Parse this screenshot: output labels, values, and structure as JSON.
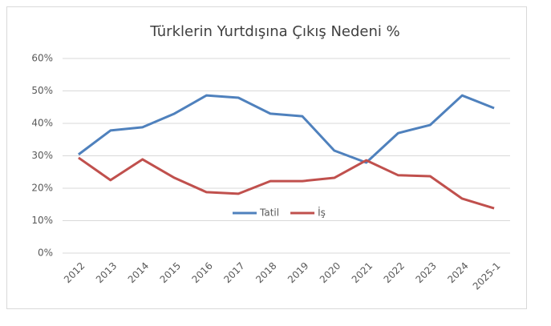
{
  "chart_data": {
    "type": "line",
    "title": "Türklerin Yurtdışına Çıkış Nedeni %",
    "categories": [
      "2012",
      "2013",
      "2014",
      "2015",
      "2016",
      "2017",
      "2018",
      "2019",
      "2020",
      "2021",
      "2022",
      "2023",
      "2024",
      "2025-1"
    ],
    "series": [
      {
        "name": "Tatil",
        "color": "#4f81bd",
        "values": [
          30.4,
          37.8,
          38.8,
          43,
          48.6,
          47.9,
          43,
          42.2,
          31.6,
          27.9,
          37,
          39.5,
          48.6,
          44.7
        ]
      },
      {
        "name": "İş",
        "color": "#c0504d",
        "values": [
          29.4,
          22.5,
          28.9,
          23.2,
          18.8,
          18.3,
          22.2,
          22.2,
          23.2,
          28.6,
          24,
          23.7,
          16.8,
          13.8
        ]
      }
    ],
    "ylim": [
      0,
      60
    ],
    "yticks": [
      {
        "value": 0,
        "label": "0%"
      },
      {
        "value": 10,
        "label": "10%"
      },
      {
        "value": 20,
        "label": "20%"
      },
      {
        "value": 30,
        "label": "30%"
      },
      {
        "value": 40,
        "label": "40%"
      },
      {
        "value": 50,
        "label": "50%"
      },
      {
        "value": 60,
        "label": "60%"
      }
    ],
    "grid": true
  }
}
